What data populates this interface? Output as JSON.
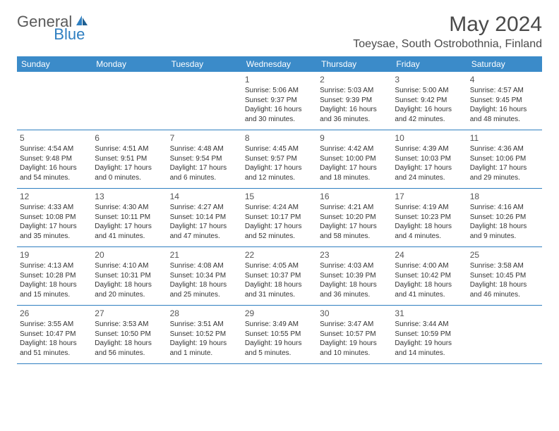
{
  "logo": {
    "general": "General",
    "blue": "Blue"
  },
  "title": "May 2024",
  "location": "Toeysae, South Ostrobothnia, Finland",
  "colors": {
    "header_bg": "#3b8bc9",
    "header_text": "#ffffff",
    "accent": "#2f7fc1",
    "body_text": "#333333",
    "title_text": "#4a4a4a"
  },
  "day_names": [
    "Sunday",
    "Monday",
    "Tuesday",
    "Wednesday",
    "Thursday",
    "Friday",
    "Saturday"
  ],
  "weeks": [
    [
      null,
      null,
      null,
      {
        "n": "1",
        "sr": "Sunrise: 5:06 AM",
        "ss": "Sunset: 9:37 PM",
        "d1": "Daylight: 16 hours",
        "d2": "and 30 minutes."
      },
      {
        "n": "2",
        "sr": "Sunrise: 5:03 AM",
        "ss": "Sunset: 9:39 PM",
        "d1": "Daylight: 16 hours",
        "d2": "and 36 minutes."
      },
      {
        "n": "3",
        "sr": "Sunrise: 5:00 AM",
        "ss": "Sunset: 9:42 PM",
        "d1": "Daylight: 16 hours",
        "d2": "and 42 minutes."
      },
      {
        "n": "4",
        "sr": "Sunrise: 4:57 AM",
        "ss": "Sunset: 9:45 PM",
        "d1": "Daylight: 16 hours",
        "d2": "and 48 minutes."
      }
    ],
    [
      {
        "n": "5",
        "sr": "Sunrise: 4:54 AM",
        "ss": "Sunset: 9:48 PM",
        "d1": "Daylight: 16 hours",
        "d2": "and 54 minutes."
      },
      {
        "n": "6",
        "sr": "Sunrise: 4:51 AM",
        "ss": "Sunset: 9:51 PM",
        "d1": "Daylight: 17 hours",
        "d2": "and 0 minutes."
      },
      {
        "n": "7",
        "sr": "Sunrise: 4:48 AM",
        "ss": "Sunset: 9:54 PM",
        "d1": "Daylight: 17 hours",
        "d2": "and 6 minutes."
      },
      {
        "n": "8",
        "sr": "Sunrise: 4:45 AM",
        "ss": "Sunset: 9:57 PM",
        "d1": "Daylight: 17 hours",
        "d2": "and 12 minutes."
      },
      {
        "n": "9",
        "sr": "Sunrise: 4:42 AM",
        "ss": "Sunset: 10:00 PM",
        "d1": "Daylight: 17 hours",
        "d2": "and 18 minutes."
      },
      {
        "n": "10",
        "sr": "Sunrise: 4:39 AM",
        "ss": "Sunset: 10:03 PM",
        "d1": "Daylight: 17 hours",
        "d2": "and 24 minutes."
      },
      {
        "n": "11",
        "sr": "Sunrise: 4:36 AM",
        "ss": "Sunset: 10:06 PM",
        "d1": "Daylight: 17 hours",
        "d2": "and 29 minutes."
      }
    ],
    [
      {
        "n": "12",
        "sr": "Sunrise: 4:33 AM",
        "ss": "Sunset: 10:08 PM",
        "d1": "Daylight: 17 hours",
        "d2": "and 35 minutes."
      },
      {
        "n": "13",
        "sr": "Sunrise: 4:30 AM",
        "ss": "Sunset: 10:11 PM",
        "d1": "Daylight: 17 hours",
        "d2": "and 41 minutes."
      },
      {
        "n": "14",
        "sr": "Sunrise: 4:27 AM",
        "ss": "Sunset: 10:14 PM",
        "d1": "Daylight: 17 hours",
        "d2": "and 47 minutes."
      },
      {
        "n": "15",
        "sr": "Sunrise: 4:24 AM",
        "ss": "Sunset: 10:17 PM",
        "d1": "Daylight: 17 hours",
        "d2": "and 52 minutes."
      },
      {
        "n": "16",
        "sr": "Sunrise: 4:21 AM",
        "ss": "Sunset: 10:20 PM",
        "d1": "Daylight: 17 hours",
        "d2": "and 58 minutes."
      },
      {
        "n": "17",
        "sr": "Sunrise: 4:19 AM",
        "ss": "Sunset: 10:23 PM",
        "d1": "Daylight: 18 hours",
        "d2": "and 4 minutes."
      },
      {
        "n": "18",
        "sr": "Sunrise: 4:16 AM",
        "ss": "Sunset: 10:26 PM",
        "d1": "Daylight: 18 hours",
        "d2": "and 9 minutes."
      }
    ],
    [
      {
        "n": "19",
        "sr": "Sunrise: 4:13 AM",
        "ss": "Sunset: 10:28 PM",
        "d1": "Daylight: 18 hours",
        "d2": "and 15 minutes."
      },
      {
        "n": "20",
        "sr": "Sunrise: 4:10 AM",
        "ss": "Sunset: 10:31 PM",
        "d1": "Daylight: 18 hours",
        "d2": "and 20 minutes."
      },
      {
        "n": "21",
        "sr": "Sunrise: 4:08 AM",
        "ss": "Sunset: 10:34 PM",
        "d1": "Daylight: 18 hours",
        "d2": "and 25 minutes."
      },
      {
        "n": "22",
        "sr": "Sunrise: 4:05 AM",
        "ss": "Sunset: 10:37 PM",
        "d1": "Daylight: 18 hours",
        "d2": "and 31 minutes."
      },
      {
        "n": "23",
        "sr": "Sunrise: 4:03 AM",
        "ss": "Sunset: 10:39 PM",
        "d1": "Daylight: 18 hours",
        "d2": "and 36 minutes."
      },
      {
        "n": "24",
        "sr": "Sunrise: 4:00 AM",
        "ss": "Sunset: 10:42 PM",
        "d1": "Daylight: 18 hours",
        "d2": "and 41 minutes."
      },
      {
        "n": "25",
        "sr": "Sunrise: 3:58 AM",
        "ss": "Sunset: 10:45 PM",
        "d1": "Daylight: 18 hours",
        "d2": "and 46 minutes."
      }
    ],
    [
      {
        "n": "26",
        "sr": "Sunrise: 3:55 AM",
        "ss": "Sunset: 10:47 PM",
        "d1": "Daylight: 18 hours",
        "d2": "and 51 minutes."
      },
      {
        "n": "27",
        "sr": "Sunrise: 3:53 AM",
        "ss": "Sunset: 10:50 PM",
        "d1": "Daylight: 18 hours",
        "d2": "and 56 minutes."
      },
      {
        "n": "28",
        "sr": "Sunrise: 3:51 AM",
        "ss": "Sunset: 10:52 PM",
        "d1": "Daylight: 19 hours",
        "d2": "and 1 minute."
      },
      {
        "n": "29",
        "sr": "Sunrise: 3:49 AM",
        "ss": "Sunset: 10:55 PM",
        "d1": "Daylight: 19 hours",
        "d2": "and 5 minutes."
      },
      {
        "n": "30",
        "sr": "Sunrise: 3:47 AM",
        "ss": "Sunset: 10:57 PM",
        "d1": "Daylight: 19 hours",
        "d2": "and 10 minutes."
      },
      {
        "n": "31",
        "sr": "Sunrise: 3:44 AM",
        "ss": "Sunset: 10:59 PM",
        "d1": "Daylight: 19 hours",
        "d2": "and 14 minutes."
      },
      null
    ]
  ]
}
